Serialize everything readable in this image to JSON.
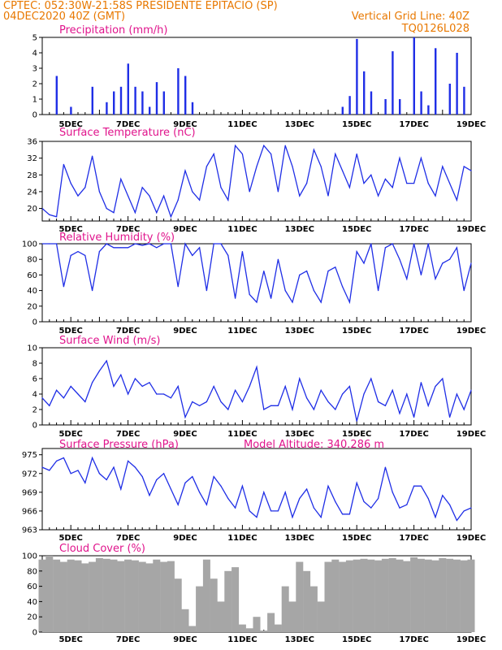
{
  "header": {
    "line1_left": "CPTEC:   052:30W-21:58S   PRESIDENTE EPITACIO (SP)",
    "line2_left": "04DEC2020 40Z (GMT)",
    "line2_right": "Vertical Grid Line: 40Z",
    "line3_right": "TQ0126L028"
  },
  "colors": {
    "header": "#e87800",
    "title": "#e0148c",
    "series": "#1f2ee6",
    "cloud": "#a6a6a6",
    "grid": "#000000"
  },
  "x_axis": {
    "labels": [
      "5DEC",
      "7DEC",
      "9DEC",
      "11DEC",
      "13DEC",
      "15DEC",
      "17DEC",
      "19DEC"
    ],
    "range": [
      "04DEC2020 00Z",
      "19DEC2020 00Z"
    ]
  },
  "chart_data": [
    {
      "type": "bar",
      "title": "Precipitation (mm/h)",
      "ylim": [
        0,
        5
      ],
      "yticks": [
        0,
        1,
        2,
        3,
        4,
        5
      ],
      "x": [
        "04DEC 12Z",
        "05DEC 00Z",
        "05DEC 18Z",
        "06DEC 06Z",
        "06DEC 12Z",
        "06DEC 18Z",
        "07DEC 00Z",
        "07DEC 06Z",
        "07DEC 12Z",
        "07DEC 18Z",
        "08DEC 00Z",
        "08DEC 06Z",
        "08DEC 18Z",
        "09DEC 00Z",
        "09DEC 06Z",
        "14DEC 12Z",
        "14DEC 18Z",
        "15DEC 00Z",
        "15DEC 06Z",
        "15DEC 12Z",
        "16DEC 00Z",
        "16DEC 06Z",
        "16DEC 12Z",
        "17DEC 00Z",
        "17DEC 06Z",
        "17DEC 12Z",
        "17DEC 18Z",
        "18DEC 06Z",
        "18DEC 12Z",
        "18DEC 18Z"
      ],
      "values": [
        2.5,
        0.5,
        1.8,
        0.8,
        1.5,
        1.8,
        3.3,
        1.8,
        1.5,
        0.5,
        2.1,
        1.5,
        3.0,
        2.5,
        0.8,
        0.5,
        1.2,
        4.9,
        2.8,
        1.5,
        1.0,
        4.1,
        1.0,
        5.0,
        1.5,
        0.6,
        4.3,
        2.0,
        4.0,
        1.8
      ]
    },
    {
      "type": "line",
      "title": "Surface Temperature (nC)",
      "ylim": [
        17,
        36
      ],
      "yticks": [
        20,
        24,
        28,
        32,
        36
      ],
      "x": [
        "04DEC 00Z",
        "04DEC 06Z",
        "04DEC 12Z",
        "04DEC 18Z",
        "05DEC 00Z",
        "05DEC 06Z",
        "05DEC 12Z",
        "05DEC 18Z",
        "06DEC 00Z",
        "06DEC 06Z",
        "06DEC 12Z",
        "06DEC 18Z",
        "07DEC 00Z",
        "07DEC 06Z",
        "07DEC 12Z",
        "07DEC 18Z",
        "08DEC 00Z",
        "08DEC 06Z",
        "08DEC 12Z",
        "08DEC 18Z",
        "09DEC 00Z",
        "09DEC 06Z",
        "09DEC 12Z",
        "09DEC 18Z",
        "10DEC 00Z",
        "10DEC 06Z",
        "10DEC 12Z",
        "10DEC 18Z",
        "11DEC 00Z",
        "11DEC 06Z",
        "11DEC 12Z",
        "11DEC 18Z",
        "12DEC 00Z",
        "12DEC 06Z",
        "12DEC 12Z",
        "12DEC 18Z",
        "13DEC 00Z",
        "13DEC 06Z",
        "13DEC 12Z",
        "13DEC 18Z",
        "14DEC 00Z",
        "14DEC 06Z",
        "14DEC 12Z",
        "14DEC 18Z",
        "15DEC 00Z",
        "15DEC 06Z",
        "15DEC 12Z",
        "15DEC 18Z",
        "16DEC 00Z",
        "16DEC 06Z",
        "16DEC 12Z",
        "16DEC 18Z",
        "17DEC 00Z",
        "17DEC 06Z",
        "17DEC 12Z",
        "17DEC 18Z",
        "18DEC 00Z",
        "18DEC 06Z",
        "18DEC 12Z",
        "18DEC 18Z",
        "19DEC 00Z"
      ],
      "values": [
        20,
        18.5,
        18,
        30.5,
        26,
        23,
        25,
        32.5,
        24,
        20,
        19,
        27,
        23,
        19,
        25,
        23,
        19,
        23,
        18,
        22,
        29,
        24,
        22,
        30,
        33,
        25,
        22,
        35,
        33,
        24,
        30,
        35,
        33,
        24,
        35,
        30,
        23,
        26,
        34,
        30,
        23,
        33,
        29,
        25,
        33,
        26,
        28,
        23,
        27,
        25,
        32,
        26,
        26,
        32,
        26,
        23,
        30,
        26,
        22,
        30,
        29
      ]
    },
    {
      "type": "line",
      "title": "Relative Humidity (%)",
      "ylim": [
        0,
        100
      ],
      "yticks": [
        0,
        20,
        40,
        60,
        80,
        100
      ],
      "x": [
        "04DEC 00Z",
        "04DEC 06Z",
        "04DEC 12Z",
        "04DEC 18Z",
        "05DEC 00Z",
        "05DEC 06Z",
        "05DEC 12Z",
        "05DEC 18Z",
        "06DEC 00Z",
        "06DEC 06Z",
        "06DEC 12Z",
        "06DEC 18Z",
        "07DEC 00Z",
        "07DEC 06Z",
        "07DEC 12Z",
        "07DEC 18Z",
        "08DEC 00Z",
        "08DEC 06Z",
        "08DEC 12Z",
        "08DEC 18Z",
        "09DEC 00Z",
        "09DEC 06Z",
        "09DEC 12Z",
        "09DEC 18Z",
        "10DEC 00Z",
        "10DEC 06Z",
        "10DEC 12Z",
        "10DEC 18Z",
        "11DEC 00Z",
        "11DEC 06Z",
        "11DEC 12Z",
        "11DEC 18Z",
        "12DEC 00Z",
        "12DEC 06Z",
        "12DEC 12Z",
        "12DEC 18Z",
        "13DEC 00Z",
        "13DEC 06Z",
        "13DEC 12Z",
        "13DEC 18Z",
        "14DEC 00Z",
        "14DEC 06Z",
        "14DEC 12Z",
        "14DEC 18Z",
        "15DEC 00Z",
        "15DEC 06Z",
        "15DEC 12Z",
        "15DEC 18Z",
        "16DEC 00Z",
        "16DEC 06Z",
        "16DEC 12Z",
        "16DEC 18Z",
        "17DEC 00Z",
        "17DEC 06Z",
        "17DEC 12Z",
        "17DEC 18Z",
        "18DEC 00Z",
        "18DEC 06Z",
        "18DEC 12Z",
        "18DEC 18Z",
        "19DEC 00Z"
      ],
      "values": [
        100,
        100,
        100,
        45,
        85,
        90,
        85,
        40,
        90,
        100,
        95,
        95,
        95,
        100,
        98,
        100,
        95,
        100,
        100,
        45,
        100,
        85,
        95,
        40,
        100,
        100,
        85,
        30,
        90,
        35,
        25,
        65,
        30,
        80,
        40,
        25,
        60,
        65,
        40,
        25,
        65,
        70,
        45,
        25,
        90,
        75,
        100,
        40,
        95,
        100,
        80,
        55,
        100,
        60,
        100,
        55,
        75,
        80,
        95,
        40,
        75
      ]
    },
    {
      "type": "line",
      "title": "Surface Wind (m/s)",
      "ylim": [
        0,
        10
      ],
      "yticks": [
        0,
        2,
        4,
        6,
        8,
        10
      ],
      "x": [
        "04DEC 00Z",
        "04DEC 06Z",
        "04DEC 12Z",
        "04DEC 18Z",
        "05DEC 00Z",
        "05DEC 06Z",
        "05DEC 12Z",
        "05DEC 18Z",
        "06DEC 00Z",
        "06DEC 06Z",
        "06DEC 12Z",
        "06DEC 18Z",
        "07DEC 00Z",
        "07DEC 06Z",
        "07DEC 12Z",
        "07DEC 18Z",
        "08DEC 00Z",
        "08DEC 06Z",
        "08DEC 12Z",
        "08DEC 18Z",
        "09DEC 00Z",
        "09DEC 06Z",
        "09DEC 12Z",
        "09DEC 18Z",
        "10DEC 00Z",
        "10DEC 06Z",
        "10DEC 12Z",
        "10DEC 18Z",
        "11DEC 00Z",
        "11DEC 06Z",
        "11DEC 12Z",
        "11DEC 18Z",
        "12DEC 00Z",
        "12DEC 06Z",
        "12DEC 12Z",
        "12DEC 18Z",
        "13DEC 00Z",
        "13DEC 06Z",
        "13DEC 12Z",
        "13DEC 18Z",
        "14DEC 00Z",
        "14DEC 06Z",
        "14DEC 12Z",
        "14DEC 18Z",
        "15DEC 00Z",
        "15DEC 06Z",
        "15DEC 12Z",
        "15DEC 18Z",
        "16DEC 00Z",
        "16DEC 06Z",
        "16DEC 12Z",
        "16DEC 18Z",
        "17DEC 00Z",
        "17DEC 06Z",
        "17DEC 12Z",
        "17DEC 18Z",
        "18DEC 00Z",
        "18DEC 06Z",
        "18DEC 12Z",
        "18DEC 18Z",
        "19DEC 00Z"
      ],
      "values": [
        3.5,
        2.5,
        4.5,
        3.5,
        5,
        4,
        3,
        5.5,
        7,
        8.3,
        5,
        6.5,
        4,
        6,
        5,
        5.5,
        4,
        4,
        3.5,
        5,
        1,
        3,
        2.5,
        3,
        5,
        3,
        2,
        4.5,
        3,
        5,
        7.5,
        2,
        2.5,
        2.5,
        5,
        2,
        6,
        3.5,
        2,
        4.5,
        3,
        2,
        4,
        5,
        0.5,
        4,
        6,
        3,
        2.5,
        4.5,
        1.5,
        4,
        1,
        5.5,
        2.5,
        5,
        6,
        1,
        4,
        2,
        4.5
      ]
    },
    {
      "type": "line",
      "title": "Surface Pressure (hPa)",
      "annotation": "Model Altitude: 340.286 m",
      "ylim": [
        963,
        976
      ],
      "yticks": [
        963,
        966,
        969,
        972,
        975
      ],
      "x": [
        "04DEC 00Z",
        "04DEC 06Z",
        "04DEC 12Z",
        "04DEC 18Z",
        "05DEC 00Z",
        "05DEC 06Z",
        "05DEC 12Z",
        "05DEC 18Z",
        "06DEC 00Z",
        "06DEC 06Z",
        "06DEC 12Z",
        "06DEC 18Z",
        "07DEC 00Z",
        "07DEC 06Z",
        "07DEC 12Z",
        "07DEC 18Z",
        "08DEC 00Z",
        "08DEC 06Z",
        "08DEC 12Z",
        "08DEC 18Z",
        "09DEC 00Z",
        "09DEC 06Z",
        "09DEC 12Z",
        "09DEC 18Z",
        "10DEC 00Z",
        "10DEC 06Z",
        "10DEC 12Z",
        "10DEC 18Z",
        "11DEC 00Z",
        "11DEC 06Z",
        "11DEC 12Z",
        "11DEC 18Z",
        "12DEC 00Z",
        "12DEC 06Z",
        "12DEC 12Z",
        "12DEC 18Z",
        "13DEC 00Z",
        "13DEC 06Z",
        "13DEC 12Z",
        "13DEC 18Z",
        "14DEC 00Z",
        "14DEC 06Z",
        "14DEC 12Z",
        "14DEC 18Z",
        "15DEC 00Z",
        "15DEC 06Z",
        "15DEC 12Z",
        "15DEC 18Z",
        "16DEC 00Z",
        "16DEC 06Z",
        "16DEC 12Z",
        "16DEC 18Z",
        "17DEC 00Z",
        "17DEC 06Z",
        "17DEC 12Z",
        "17DEC 18Z",
        "18DEC 00Z",
        "18DEC 06Z",
        "18DEC 12Z",
        "18DEC 18Z",
        "19DEC 00Z"
      ],
      "values": [
        973,
        972.5,
        974,
        974.5,
        972,
        972.5,
        970.5,
        974.5,
        972,
        971,
        973,
        969.5,
        974,
        973,
        971.5,
        968.5,
        971,
        972,
        969.5,
        967,
        970.5,
        971.5,
        969,
        967,
        971.5,
        970,
        968,
        966.5,
        970,
        966,
        965,
        969,
        966,
        966,
        969,
        965,
        968,
        969.5,
        966.5,
        965,
        970,
        967.5,
        965.5,
        965.5,
        970.5,
        967.5,
        966.5,
        968,
        973,
        969,
        966.5,
        967,
        970,
        970,
        968,
        965,
        968.5,
        967,
        964.5,
        966,
        966.5
      ]
    },
    {
      "type": "area",
      "title": "Cloud Cover (%)",
      "ylim": [
        0,
        100
      ],
      "yticks": [
        0,
        20,
        40,
        60,
        80,
        100
      ],
      "x": [
        "04DEC 00Z",
        "04DEC 06Z",
        "04DEC 12Z",
        "04DEC 18Z",
        "05DEC 00Z",
        "05DEC 06Z",
        "05DEC 12Z",
        "05DEC 18Z",
        "06DEC 00Z",
        "06DEC 06Z",
        "06DEC 12Z",
        "06DEC 18Z",
        "07DEC 00Z",
        "07DEC 06Z",
        "07DEC 12Z",
        "07DEC 18Z",
        "08DEC 00Z",
        "08DEC 06Z",
        "08DEC 12Z",
        "08DEC 18Z",
        "09DEC 00Z",
        "09DEC 06Z",
        "09DEC 12Z",
        "09DEC 18Z",
        "10DEC 00Z",
        "10DEC 06Z",
        "10DEC 12Z",
        "10DEC 18Z",
        "11DEC 00Z",
        "11DEC 06Z",
        "11DEC 12Z",
        "11DEC 18Z",
        "12DEC 00Z",
        "12DEC 06Z",
        "12DEC 12Z",
        "12DEC 18Z",
        "13DEC 00Z",
        "13DEC 06Z",
        "13DEC 12Z",
        "13DEC 18Z",
        "14DEC 00Z",
        "14DEC 06Z",
        "14DEC 12Z",
        "14DEC 18Z",
        "15DEC 00Z",
        "15DEC 06Z",
        "15DEC 12Z",
        "15DEC 18Z",
        "16DEC 00Z",
        "16DEC 06Z",
        "16DEC 12Z",
        "16DEC 18Z",
        "17DEC 00Z",
        "17DEC 06Z",
        "17DEC 12Z",
        "17DEC 18Z",
        "18DEC 00Z",
        "18DEC 06Z",
        "18DEC 12Z",
        "18DEC 18Z",
        "19DEC 00Z"
      ],
      "values": [
        95,
        100,
        95,
        92,
        95,
        94,
        90,
        92,
        97,
        96,
        95,
        93,
        95,
        94,
        92,
        90,
        95,
        92,
        93,
        70,
        30,
        8,
        60,
        95,
        70,
        40,
        80,
        85,
        10,
        5,
        20,
        2,
        25,
        10,
        60,
        40,
        92,
        80,
        60,
        40,
        92,
        95,
        92,
        94,
        95,
        96,
        95,
        94,
        96,
        97,
        95,
        93,
        98,
        96,
        95,
        94,
        97,
        96,
        95,
        94,
        95
      ]
    }
  ]
}
